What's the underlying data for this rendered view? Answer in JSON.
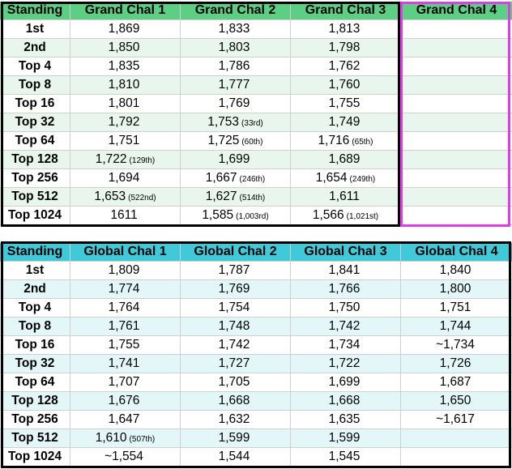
{
  "grand": {
    "headers": [
      "Standing",
      "Grand Chal 1",
      "Grand Chal 2",
      "Grand Chal 3",
      "Grand Chal 4"
    ],
    "rows": [
      [
        {
          "v": "1st"
        },
        {
          "v": "1,869",
          "n": ""
        },
        {
          "v": "1,833",
          "n": ""
        },
        {
          "v": "1,813",
          "n": ""
        },
        {
          "v": "",
          "n": ""
        }
      ],
      [
        {
          "v": "2nd"
        },
        {
          "v": "1,850",
          "n": ""
        },
        {
          "v": "1,803",
          "n": ""
        },
        {
          "v": "1,798",
          "n": ""
        },
        {
          "v": "",
          "n": ""
        }
      ],
      [
        {
          "v": "Top 4"
        },
        {
          "v": "1,835",
          "n": ""
        },
        {
          "v": "1,786",
          "n": ""
        },
        {
          "v": "1,762",
          "n": ""
        },
        {
          "v": "",
          "n": ""
        }
      ],
      [
        {
          "v": "Top 8"
        },
        {
          "v": "1,810",
          "n": ""
        },
        {
          "v": "1,777",
          "n": ""
        },
        {
          "v": "1,760",
          "n": ""
        },
        {
          "v": "",
          "n": ""
        }
      ],
      [
        {
          "v": "Top 16"
        },
        {
          "v": "1,801",
          "n": ""
        },
        {
          "v": "1,769",
          "n": ""
        },
        {
          "v": "1,755",
          "n": ""
        },
        {
          "v": "",
          "n": ""
        }
      ],
      [
        {
          "v": "Top 32"
        },
        {
          "v": "1,792",
          "n": ""
        },
        {
          "v": "1,753",
          "n": "(33rd)"
        },
        {
          "v": "1,749",
          "n": ""
        },
        {
          "v": "",
          "n": ""
        }
      ],
      [
        {
          "v": "Top 64"
        },
        {
          "v": "1,751",
          "n": ""
        },
        {
          "v": "1,725",
          "n": "(60th)"
        },
        {
          "v": "1,716",
          "n": "(65th)"
        },
        {
          "v": "",
          "n": ""
        }
      ],
      [
        {
          "v": "Top 128"
        },
        {
          "v": "1,722",
          "n": "(129th)"
        },
        {
          "v": "1,699",
          "n": ""
        },
        {
          "v": "1,689",
          "n": ""
        },
        {
          "v": "",
          "n": ""
        }
      ],
      [
        {
          "v": "Top 256"
        },
        {
          "v": "1,694",
          "n": ""
        },
        {
          "v": "1,667",
          "n": "(246th)"
        },
        {
          "v": "1,654",
          "n": "(249th)"
        },
        {
          "v": "",
          "n": ""
        }
      ],
      [
        {
          "v": "Top 512"
        },
        {
          "v": "1,653",
          "n": "(522nd)"
        },
        {
          "v": "1,627",
          "n": "(514th)"
        },
        {
          "v": "1,611",
          "n": ""
        },
        {
          "v": "",
          "n": ""
        }
      ],
      [
        {
          "v": "Top 1024"
        },
        {
          "v": "1611",
          "n": ""
        },
        {
          "v": "1,585",
          "n": "(1,003rd)"
        },
        {
          "v": "1,566",
          "n": "(1,021st)"
        },
        {
          "v": "",
          "n": ""
        }
      ]
    ]
  },
  "global": {
    "headers": [
      "Standing",
      "Global Chal 1",
      "Global Chal 2",
      "Global Chal 3",
      "Global Chal 4"
    ],
    "rows": [
      [
        {
          "v": "1st"
        },
        {
          "v": "1,809",
          "n": ""
        },
        {
          "v": "1,787",
          "n": ""
        },
        {
          "v": "1,841",
          "n": ""
        },
        {
          "v": "1,840",
          "n": ""
        }
      ],
      [
        {
          "v": "2nd"
        },
        {
          "v": "1,774",
          "n": ""
        },
        {
          "v": "1,769",
          "n": ""
        },
        {
          "v": "1,766",
          "n": ""
        },
        {
          "v": "1,800",
          "n": ""
        }
      ],
      [
        {
          "v": "Top 4"
        },
        {
          "v": "1,764",
          "n": ""
        },
        {
          "v": "1,754",
          "n": ""
        },
        {
          "v": "1,750",
          "n": ""
        },
        {
          "v": "1,751",
          "n": ""
        }
      ],
      [
        {
          "v": "Top 8"
        },
        {
          "v": "1,761",
          "n": ""
        },
        {
          "v": "1,748",
          "n": ""
        },
        {
          "v": "1,742",
          "n": ""
        },
        {
          "v": "1,744",
          "n": ""
        }
      ],
      [
        {
          "v": "Top 16"
        },
        {
          "v": "1,755",
          "n": ""
        },
        {
          "v": "1,742",
          "n": ""
        },
        {
          "v": "1,734",
          "n": ""
        },
        {
          "v": "~1,734",
          "n": ""
        }
      ],
      [
        {
          "v": "Top 32"
        },
        {
          "v": "1,741",
          "n": ""
        },
        {
          "v": "1,727",
          "n": ""
        },
        {
          "v": "1,722",
          "n": ""
        },
        {
          "v": "1,726",
          "n": ""
        }
      ],
      [
        {
          "v": "Top 64"
        },
        {
          "v": "1,707",
          "n": ""
        },
        {
          "v": "1,705",
          "n": ""
        },
        {
          "v": "1,699",
          "n": ""
        },
        {
          "v": "1,687",
          "n": ""
        }
      ],
      [
        {
          "v": "Top 128"
        },
        {
          "v": "1,676",
          "n": ""
        },
        {
          "v": "1,668",
          "n": ""
        },
        {
          "v": "1,668",
          "n": ""
        },
        {
          "v": "1,650",
          "n": ""
        }
      ],
      [
        {
          "v": "Top 256"
        },
        {
          "v": "1,647",
          "n": ""
        },
        {
          "v": "1,632",
          "n": ""
        },
        {
          "v": "1,635",
          "n": ""
        },
        {
          "v": "~1,617",
          "n": ""
        }
      ],
      [
        {
          "v": "Top 512"
        },
        {
          "v": "1,610",
          "n": "(507th)"
        },
        {
          "v": "1,599",
          "n": ""
        },
        {
          "v": "1,599",
          "n": ""
        },
        {
          "v": "",
          "n": ""
        }
      ],
      [
        {
          "v": "Top 1024"
        },
        {
          "v": "~1,554",
          "n": ""
        },
        {
          "v": "1,544",
          "n": ""
        },
        {
          "v": "1,545",
          "n": ""
        },
        {
          "v": "",
          "n": ""
        }
      ]
    ]
  },
  "colors": {
    "grand_header": "#5ccf85",
    "grand_alt_row": "#e8f6ee",
    "grand_col4_highlight": "#e13be8",
    "global_header": "#3fc9d9",
    "global_alt_row": "#e3f6f8",
    "frame": "#000000"
  }
}
